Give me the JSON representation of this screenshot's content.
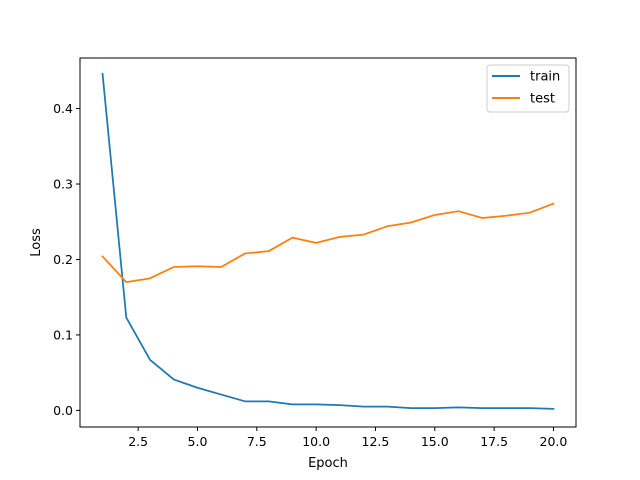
{
  "chart_data": {
    "type": "line",
    "title": "",
    "xlabel": "Epoch",
    "ylabel": "Loss",
    "xlim": [
      0.05,
      20.95
    ],
    "ylim": [
      -0.022,
      0.467
    ],
    "x_ticks": [
      2.5,
      5.0,
      7.5,
      10.0,
      12.5,
      15.0,
      17.5,
      20.0
    ],
    "x_tick_labels": [
      "2.5",
      "5.0",
      "7.5",
      "10.0",
      "12.5",
      "15.0",
      "17.5",
      "20.0"
    ],
    "y_ticks": [
      0.0,
      0.1,
      0.2,
      0.3,
      0.4
    ],
    "y_tick_labels": [
      "0.0",
      "0.1",
      "0.2",
      "0.3",
      "0.4"
    ],
    "grid": false,
    "legend_position": "top-right",
    "x": [
      1,
      2,
      3,
      4,
      5,
      6,
      7,
      8,
      9,
      10,
      11,
      12,
      13,
      14,
      15,
      16,
      17,
      18,
      19,
      20
    ],
    "series": [
      {
        "name": "train",
        "color": "#1f77b4",
        "values": [
          0.446,
          0.123,
          0.067,
          0.041,
          0.03,
          0.021,
          0.012,
          0.012,
          0.008,
          0.008,
          0.007,
          0.005,
          0.005,
          0.003,
          0.003,
          0.004,
          0.003,
          0.003,
          0.003,
          0.002
        ]
      },
      {
        "name": "test",
        "color": "#ff7f0e",
        "values": [
          0.204,
          0.17,
          0.175,
          0.19,
          0.191,
          0.19,
          0.208,
          0.211,
          0.229,
          0.222,
          0.23,
          0.233,
          0.244,
          0.249,
          0.259,
          0.264,
          0.255,
          0.258,
          0.262,
          0.274
        ]
      }
    ]
  }
}
